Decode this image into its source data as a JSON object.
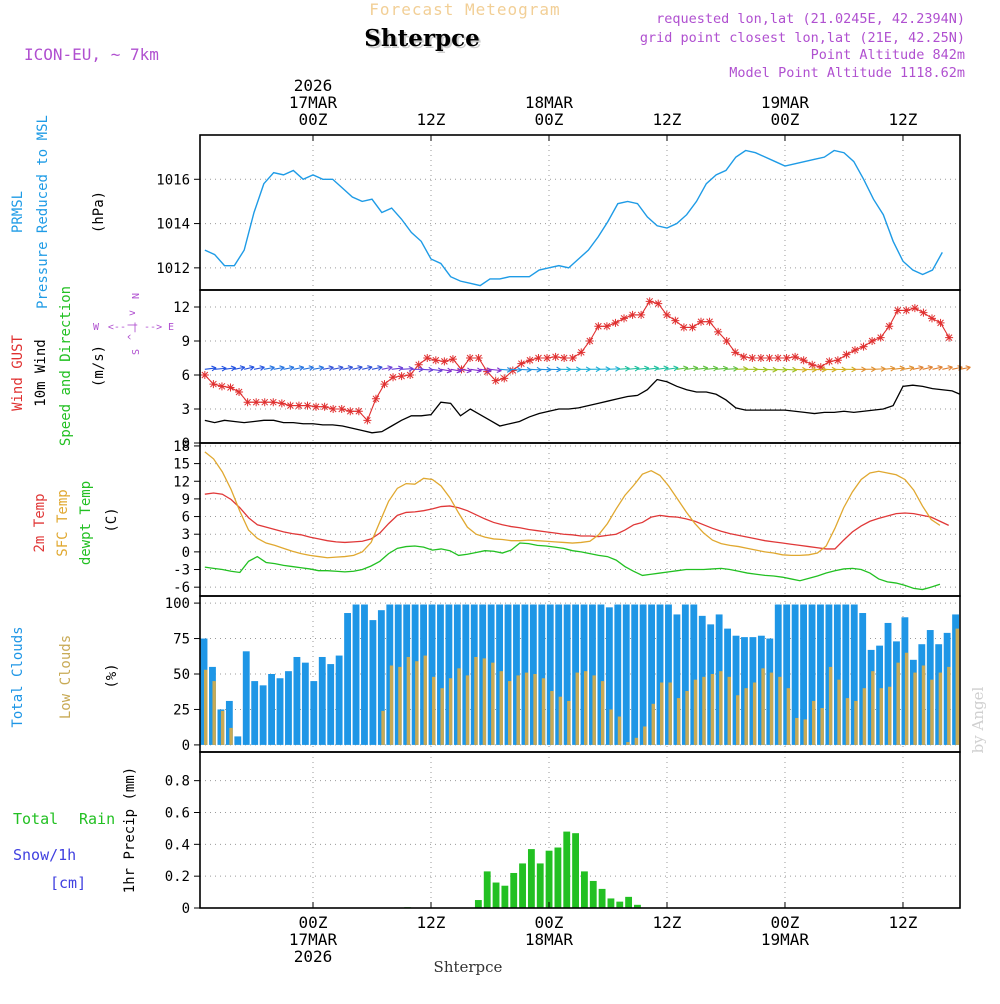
{
  "header": {
    "title": "Forecast Meteogram",
    "location": "Shterpce",
    "model": "ICON-EU, ~ 7km",
    "requested": "requested lon,lat (21.0245E, 42.2394N)",
    "closest": "grid point closest lon,lat (21E, 42.25N)",
    "point_alt": "Point Altitude 842m",
    "model_alt": "Model Point Altitude 1118.62m",
    "footer_location": "Shterpce",
    "watermark": "by Angel"
  },
  "colors": {
    "pressure": "#1e9be6",
    "gust": "#e03030",
    "wind": "#000000",
    "temp2m": "#e03838",
    "sfc": "#e0a830",
    "dewpt": "#22c022",
    "total_clouds": "#1e96e6",
    "low_clouds": "#c8aa55",
    "rain": "#22c022",
    "snow": "#4040e0",
    "title": "#f2cf96",
    "info": "#b050d0"
  },
  "time_axis": {
    "top_labels": [
      {
        "h": 0,
        "lines": [
          "2026",
          "17MAR",
          "00Z"
        ]
      },
      {
        "h": 12,
        "lines": [
          "12Z"
        ]
      },
      {
        "h": 24,
        "lines": [
          "18MAR",
          "00Z"
        ]
      },
      {
        "h": 36,
        "lines": [
          "12Z"
        ]
      },
      {
        "h": 48,
        "lines": [
          "19MAR",
          "00Z"
        ]
      },
      {
        "h": 60,
        "lines": [
          "12Z"
        ]
      }
    ],
    "bottom_labels": [
      {
        "h": 0,
        "lines": [
          "00Z",
          "17MAR",
          "2026"
        ]
      },
      {
        "h": 12,
        "lines": [
          "12Z"
        ]
      },
      {
        "h": 24,
        "lines": [
          "00Z",
          "18MAR"
        ]
      },
      {
        "h": 36,
        "lines": [
          "12Z"
        ]
      },
      {
        "h": 48,
        "lines": [
          "00Z",
          "19MAR"
        ]
      },
      {
        "h": 60,
        "lines": [
          "12Z"
        ]
      }
    ]
  },
  "chart_data": [
    {
      "type": "line",
      "title": "PRMSL Pressure Reduced to MSL",
      "label_lines": [
        "PRMSL",
        "Pressure Reduced to MSL"
      ],
      "ylabel": "(hPa)",
      "ylim": [
        1011,
        1018
      ],
      "yticks": [
        1012,
        1014,
        1016
      ],
      "x_hours_start": -11,
      "x_hours_step": 1,
      "values": [
        1012.8,
        1012.6,
        1012.1,
        1012.1,
        1012.8,
        1014.5,
        1015.8,
        1016.3,
        1016.2,
        1016.4,
        1016.0,
        1016.2,
        1016.0,
        1016.0,
        1015.6,
        1015.2,
        1015.0,
        1015.1,
        1014.5,
        1014.7,
        1014.2,
        1013.6,
        1013.2,
        1012.4,
        1012.2,
        1011.6,
        1011.4,
        1011.3,
        1011.2,
        1011.5,
        1011.5,
        1011.6,
        1011.6,
        1011.6,
        1011.9,
        1012.0,
        1012.1,
        1012.0,
        1012.4,
        1012.8,
        1013.4,
        1014.1,
        1014.9,
        1015.0,
        1014.9,
        1014.3,
        1013.9,
        1013.8,
        1014.0,
        1014.4,
        1015.0,
        1015.8,
        1016.2,
        1016.4,
        1017.0,
        1017.3,
        1017.2,
        1017.0,
        1016.8,
        1016.6,
        1016.7,
        1016.8,
        1016.9,
        1017.0,
        1017.3,
        1017.2,
        1016.8,
        1016.0,
        1015.1,
        1014.4,
        1013.2,
        1012.3,
        1011.9,
        1011.7,
        1011.9,
        1012.7
      ]
    },
    {
      "type": "line",
      "title": "Wind GUST / 10m Wind Speed and Direction",
      "label_lines": [
        "Wind GUST",
        "10m Wind",
        "Speed and Direction"
      ],
      "ylabel": "(m/s)",
      "ylim": [
        0,
        13.5
      ],
      "yticks": [
        0,
        3,
        6,
        9,
        12
      ],
      "compass": {
        "n": "N",
        "w": "W",
        "e": "E",
        "s": "S",
        "arrows_v": "^ | v",
        "arrows_h": "<-- | -->"
      },
      "x_hours_start": -11,
      "x_hours_step": 1,
      "series": [
        {
          "name": "Wind GUST",
          "values": [
            6.0,
            5.2,
            5.0,
            4.9,
            4.5,
            3.6,
            3.6,
            3.6,
            3.6,
            3.5,
            3.3,
            3.3,
            3.3,
            3.2,
            3.2,
            3.0,
            3.0,
            2.8,
            2.8,
            2.0,
            3.9,
            5.2,
            5.8,
            5.9,
            6.0,
            6.9,
            7.5,
            7.3,
            7.2,
            7.4,
            6.5,
            7.5,
            7.5,
            6.3,
            5.5,
            5.7,
            6.4,
            7.0,
            7.3,
            7.5,
            7.5,
            7.6,
            7.5,
            7.5,
            8.0,
            9.0,
            10.3,
            10.3,
            10.6,
            11.0,
            11.3,
            11.3,
            12.5,
            12.3,
            11.3,
            10.8,
            10.2,
            10.2,
            10.7,
            10.7,
            9.8,
            9.0,
            8.0,
            7.6,
            7.5,
            7.5,
            7.5,
            7.5,
            7.5,
            7.6,
            7.3,
            6.9,
            6.7,
            7.2,
            7.3,
            7.8,
            8.2,
            8.5,
            9.0,
            9.3,
            10.3,
            11.7,
            11.7,
            11.9,
            11.5,
            11.0,
            10.6,
            9.3
          ]
        },
        {
          "name": "10m Wind",
          "values": [
            2.0,
            1.8,
            2.0,
            1.9,
            1.8,
            1.9,
            2.0,
            2.0,
            1.8,
            1.8,
            1.7,
            1.7,
            1.6,
            1.6,
            1.5,
            1.3,
            1.1,
            0.9,
            1.0,
            1.5,
            2.0,
            2.4,
            2.4,
            2.5,
            3.6,
            3.5,
            2.4,
            3.0,
            2.5,
            2.0,
            1.5,
            1.7,
            1.9,
            2.3,
            2.6,
            2.8,
            3.0,
            3.0,
            3.1,
            3.3,
            3.5,
            3.7,
            3.9,
            4.1,
            4.2,
            4.7,
            5.6,
            5.4,
            5.0,
            4.7,
            4.5,
            4.5,
            4.3,
            3.8,
            3.1,
            2.9,
            2.9,
            2.9,
            2.9,
            2.9,
            2.8,
            2.7,
            2.6,
            2.7,
            2.7,
            2.8,
            2.7,
            2.8,
            2.9,
            3.0,
            3.3,
            5.0,
            5.1,
            5.0,
            4.8,
            4.7,
            4.6,
            4.3
          ]
        }
      ],
      "arrow_dirs": [
        250,
        255,
        248,
        240,
        236,
        240,
        242,
        242,
        240,
        240,
        240,
        242,
        242,
        240,
        238,
        236,
        236,
        238,
        240,
        250,
        260,
        270,
        280,
        290,
        296,
        296,
        294,
        292,
        290,
        288,
        282,
        280,
        280,
        278,
        276,
        274,
        272,
        270,
        270,
        268,
        266,
        262,
        258,
        254,
        252,
        250,
        248,
        248,
        248,
        248,
        250,
        252,
        254,
        260,
        264,
        270,
        276,
        280,
        280,
        280,
        280,
        278,
        276,
        276,
        274,
        272,
        270,
        268,
        262,
        255,
        250,
        245,
        240,
        236,
        236,
        238,
        238,
        240
      ]
    },
    {
      "type": "line",
      "title": "2m Temp / SFC Temp / dewpt Temp",
      "label_lines": [
        "2m Temp",
        "SFC Temp",
        "dewpt Temp"
      ],
      "ylabel": "(C)",
      "ylim": [
        -7.5,
        18.5
      ],
      "yticks": [
        -6,
        -3,
        0,
        3,
        6,
        9,
        12,
        15,
        18
      ],
      "x_hours_start": -11,
      "x_hours_step": 1,
      "series": [
        {
          "name": "2m Temp",
          "values": [
            9.8,
            10.0,
            9.8,
            8.9,
            7.5,
            5.8,
            4.6,
            4.2,
            3.8,
            3.4,
            3.1,
            2.9,
            2.5,
            2.2,
            1.9,
            1.7,
            1.6,
            1.7,
            1.8,
            2.2,
            3.2,
            4.8,
            6.2,
            6.7,
            6.8,
            7.0,
            7.3,
            7.7,
            7.8,
            7.5,
            7.0,
            6.3,
            5.6,
            5.0,
            4.6,
            4.3,
            4.1,
            3.8,
            3.6,
            3.4,
            3.2,
            3.0,
            2.9,
            2.7,
            2.7,
            2.6,
            2.8,
            3.0,
            3.7,
            4.6,
            5.0,
            5.9,
            6.2,
            6.0,
            5.9,
            5.6,
            5.2,
            4.6,
            4.0,
            3.5,
            3.1,
            2.8,
            2.5,
            2.2,
            1.9,
            1.7,
            1.5,
            1.3,
            1.1,
            0.9,
            0.7,
            0.5,
            0.5,
            2.0,
            3.4,
            4.4,
            5.2,
            5.7,
            6.1,
            6.5,
            6.6,
            6.5,
            6.2,
            5.9,
            5.2,
            4.5
          ]
        },
        {
          "name": "SFC Temp",
          "values": [
            17.0,
            15.8,
            13.6,
            10.6,
            6.9,
            3.7,
            2.3,
            1.5,
            1.1,
            0.6,
            0.1,
            -0.3,
            -0.6,
            -0.8,
            -1.0,
            -0.9,
            -0.8,
            -0.6,
            0.0,
            1.6,
            5.1,
            8.6,
            10.8,
            11.6,
            11.5,
            12.5,
            12.3,
            11.2,
            9.2,
            6.6,
            4.2,
            3.0,
            2.5,
            2.2,
            2.1,
            1.9,
            1.9,
            2.0,
            1.9,
            1.8,
            1.7,
            1.6,
            1.5,
            1.6,
            1.8,
            2.9,
            4.8,
            7.3,
            9.6,
            11.3,
            13.2,
            13.8,
            13.0,
            11.2,
            9.0,
            6.8,
            4.8,
            3.2,
            2.0,
            1.4,
            1.1,
            0.9,
            0.6,
            0.3,
            0.0,
            -0.2,
            -0.5,
            -0.6,
            -0.6,
            -0.5,
            -0.2,
            1.0,
            4.0,
            7.5,
            10.2,
            12.3,
            13.4,
            13.7,
            13.4,
            13.1,
            12.3,
            10.5,
            7.8,
            5.5,
            4.5
          ]
        },
        {
          "name": "dewpt Temp",
          "values": [
            -2.6,
            -2.8,
            -3.0,
            -3.3,
            -3.5,
            -1.6,
            -0.8,
            -1.8,
            -2.0,
            -2.3,
            -2.5,
            -2.7,
            -2.9,
            -3.2,
            -3.2,
            -3.3,
            -3.4,
            -3.3,
            -3.0,
            -2.4,
            -1.6,
            -0.3,
            0.6,
            0.9,
            1.0,
            0.8,
            0.3,
            0.5,
            0.2,
            -0.6,
            -0.4,
            -0.1,
            0.2,
            0.1,
            -0.2,
            0.3,
            1.5,
            1.4,
            1.1,
            1.0,
            0.8,
            0.6,
            0.2,
            0.0,
            -0.3,
            -0.6,
            -0.8,
            -1.4,
            -2.5,
            -3.3,
            -4.0,
            -3.8,
            -3.6,
            -3.4,
            -3.2,
            -3.0,
            -3.0,
            -3.0,
            -2.9,
            -2.8,
            -3.0,
            -3.3,
            -3.6,
            -3.8,
            -4.0,
            -4.1,
            -4.3,
            -4.6,
            -4.9,
            -4.5,
            -4.1,
            -3.6,
            -3.2,
            -2.9,
            -2.8,
            -3.0,
            -3.6,
            -4.6,
            -5.1,
            -5.3,
            -5.7,
            -6.2,
            -6.4,
            -6.0,
            -5.5
          ]
        }
      ]
    },
    {
      "type": "bar",
      "title": "Total Clouds / Low Clouds",
      "label_lines": [
        "Total Clouds",
        "Low Clouds"
      ],
      "ylabel": "(%)",
      "ylim": [
        -5,
        105
      ],
      "yticks": [
        0,
        25,
        50,
        75,
        100
      ],
      "x_hours_start": -11,
      "x_hours_step": 1,
      "series": [
        {
          "name": "Total Clouds",
          "values": [
            75,
            55,
            25,
            31,
            6,
            66,
            45,
            42,
            50,
            47,
            52,
            62,
            58,
            45,
            62,
            57,
            63,
            93,
            99,
            99,
            88,
            95,
            99,
            99,
            99,
            99,
            99,
            99,
            99,
            99,
            99,
            99,
            99,
            99,
            99,
            99,
            99,
            99,
            99,
            99,
            99,
            99,
            99,
            99,
            99,
            99,
            99,
            99,
            97,
            99,
            99,
            99,
            99,
            99,
            99,
            99,
            92,
            99,
            99,
            91,
            85,
            92,
            82,
            77,
            76,
            76,
            77,
            75,
            99,
            99,
            99,
            99,
            99,
            99,
            99,
            99,
            99,
            99,
            93,
            67,
            70,
            86,
            73,
            90,
            60,
            71,
            81,
            71,
            79,
            92
          ]
        },
        {
          "name": "Low Clouds",
          "values": [
            53,
            45,
            24,
            12,
            0,
            0,
            0,
            0,
            0,
            0,
            0,
            0,
            0,
            0,
            0,
            0,
            0,
            0,
            0,
            0,
            0,
            24,
            56,
            55,
            62,
            59,
            63,
            48,
            40,
            47,
            54,
            49,
            62,
            61,
            58,
            52,
            45,
            49,
            51,
            50,
            47,
            38,
            34,
            31,
            51,
            52,
            49,
            45,
            25,
            20,
            2,
            5,
            13,
            29,
            44,
            44,
            33,
            38,
            46,
            48,
            50,
            52,
            48,
            35,
            40,
            44,
            54,
            51,
            48,
            40,
            19,
            18,
            31,
            26,
            55,
            46,
            33,
            31,
            40,
            52,
            40,
            41,
            58,
            65,
            51,
            56,
            46,
            51,
            55,
            82
          ]
        }
      ]
    },
    {
      "type": "bar",
      "title": "1hr Precip (mm)",
      "label_lines": [
        "Total",
        "Rain",
        "Snow/1h",
        "[cm]"
      ],
      "ylabel": "1hr Precip (mm)",
      "ylim": [
        0,
        0.98
      ],
      "yticks": [
        0,
        0.2,
        0.4,
        0.6,
        0.8
      ],
      "x_hours_start": -11,
      "x_hours_step": 1,
      "series": [
        {
          "name": "Total Rain",
          "values": [
            0,
            0,
            0,
            0,
            0,
            0,
            0,
            0,
            0,
            0,
            0,
            0,
            0,
            0,
            0,
            0,
            0,
            0,
            0,
            0,
            0,
            0,
            0,
            0.005,
            0,
            0,
            0,
            0,
            0,
            0,
            0,
            0.05,
            0.23,
            0.16,
            0.14,
            0.22,
            0.28,
            0.37,
            0.28,
            0.36,
            0.38,
            0.48,
            0.47,
            0.23,
            0.17,
            0.12,
            0.06,
            0.04,
            0.07,
            0.02,
            0,
            0,
            0,
            0,
            0,
            0,
            0,
            0,
            0,
            0,
            0,
            0,
            0,
            0,
            0,
            0,
            0,
            0,
            0,
            0,
            0,
            0,
            0,
            0,
            0,
            0,
            0,
            0,
            0,
            0,
            0,
            0,
            0,
            0,
            0,
            0
          ]
        }
      ]
    }
  ]
}
